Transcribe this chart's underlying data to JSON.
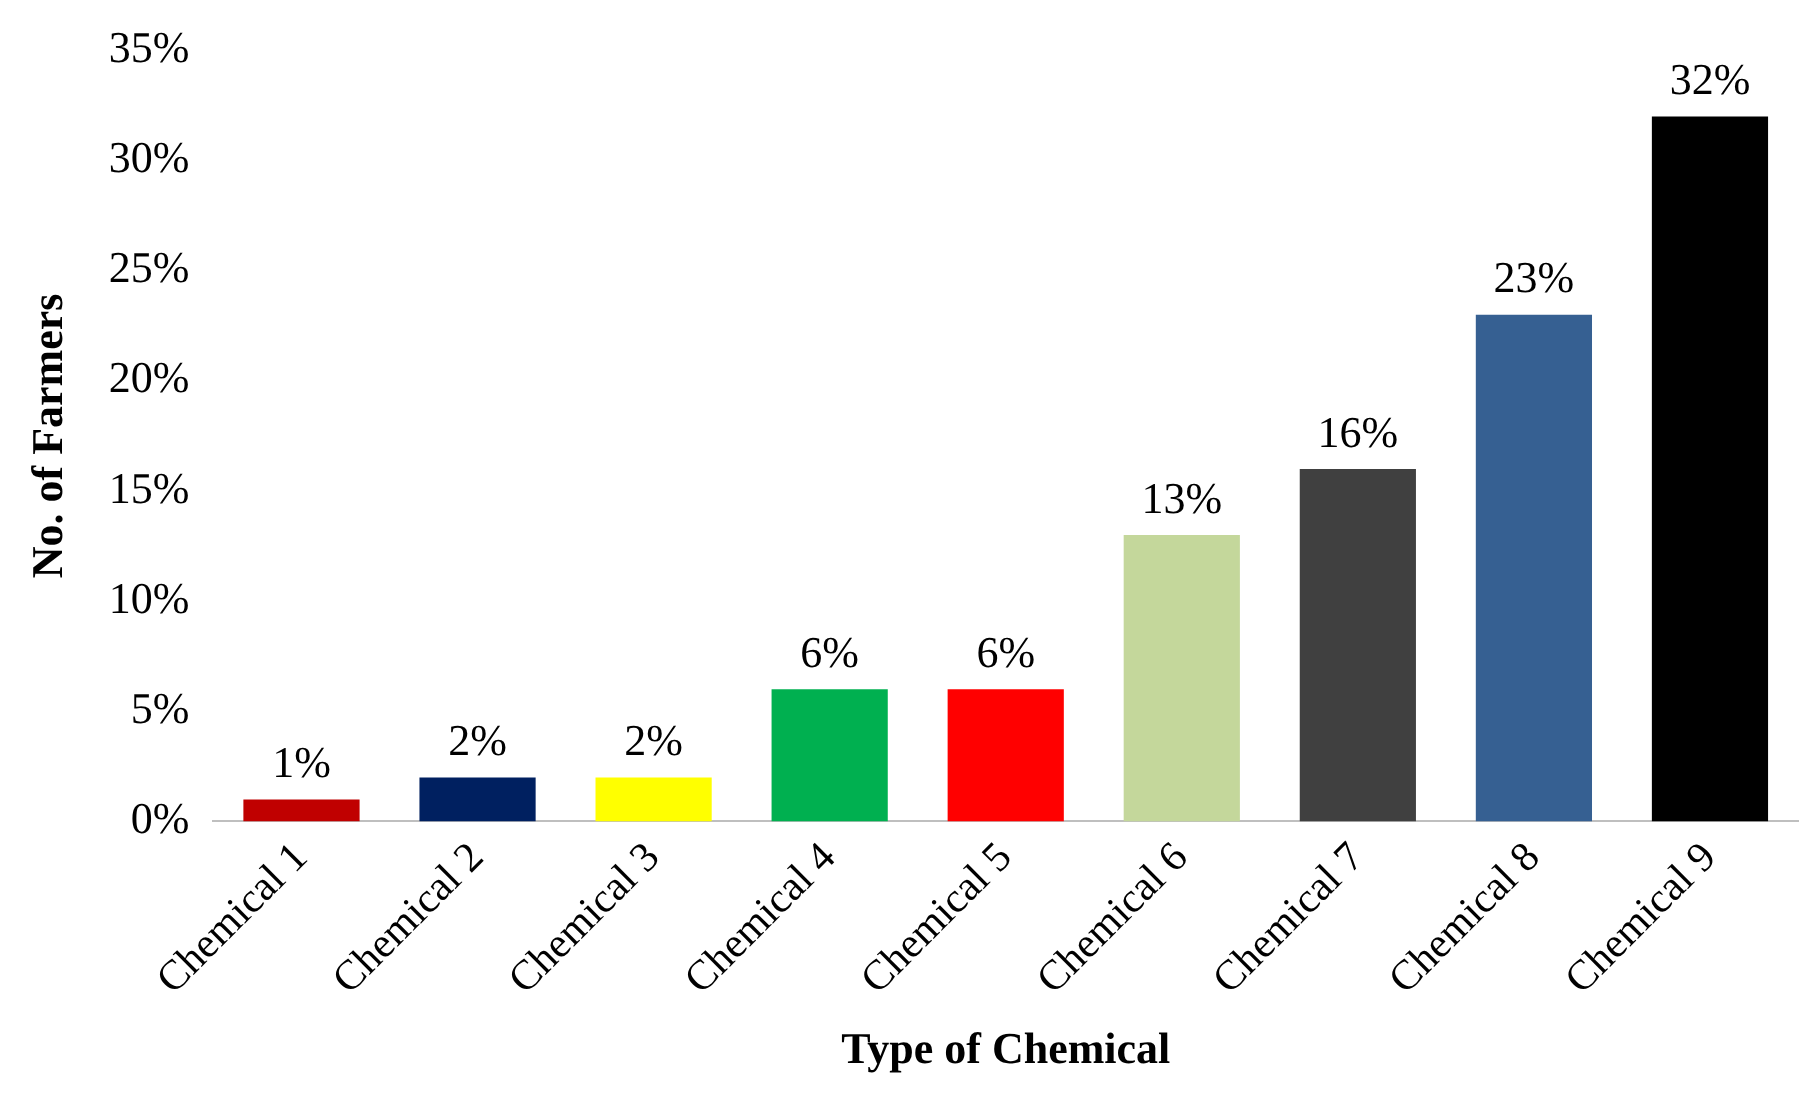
{
  "chart_data": {
    "type": "bar",
    "xlabel": "Type of Chemical",
    "ylabel": "No. of Farmers",
    "categories": [
      "Chemical 1",
      "Chemical 2",
      "Chemical 3",
      "Chemical 4",
      "Chemical 5",
      "Chemical 6",
      "Chemical 7",
      "Chemical 8",
      "Chemical 9"
    ],
    "values": [
      1,
      2,
      2,
      6,
      6,
      13,
      16,
      23,
      32
    ],
    "colors": [
      "#c00000",
      "#002060",
      "#ffff00",
      "#00b050",
      "#ff0000",
      "#c4d79b",
      "#404040",
      "#366092",
      "#000000"
    ],
    "value_labels": [
      "1%",
      "2%",
      "2%",
      "6%",
      "6%",
      "13%",
      "16%",
      "23%",
      "32%"
    ],
    "ylim": [
      0,
      35
    ],
    "yticks": [
      {
        "value": 0,
        "label": "0%"
      },
      {
        "value": 5,
        "label": "5%"
      },
      {
        "value": 10,
        "label": "10%"
      },
      {
        "value": 15,
        "label": "15%"
      },
      {
        "value": 20,
        "label": "20%"
      },
      {
        "value": 25,
        "label": "25%"
      },
      {
        "value": 30,
        "label": "30%"
      },
      {
        "value": 35,
        "label": "35%"
      }
    ],
    "grid": false,
    "legend": false
  }
}
